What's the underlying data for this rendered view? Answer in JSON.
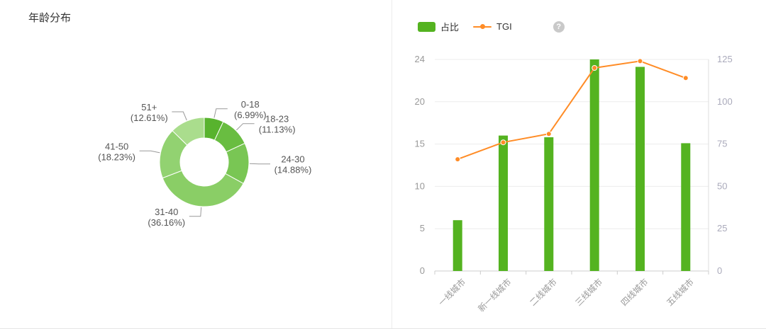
{
  "left_panel": {
    "title": "年龄分布"
  },
  "right_panel": {
    "help_icon": "?"
  },
  "chart_data": [
    {
      "type": "pie",
      "name": "年龄分布",
      "donut": true,
      "start_angle_deg": -90,
      "clockwise": true,
      "labels": [
        "0-18",
        "18-23",
        "24-30",
        "31-40",
        "41-50",
        "51+"
      ],
      "values": [
        6.99,
        11.13,
        14.88,
        36.16,
        18.23,
        12.61
      ],
      "unit": "%",
      "colors": [
        "#58b32e",
        "#69bd41",
        "#79c654",
        "#8ace66",
        "#92d271",
        "#aadd8d"
      ],
      "label_position": "outside"
    },
    {
      "type": "bar",
      "subtype": "bar-line-combo",
      "categories": [
        "一线城市",
        "新一线城市",
        "二线城市",
        "三线城市",
        "四线城市",
        "五线城市"
      ],
      "series": [
        {
          "name": "占比",
          "type": "bar",
          "axis": "left",
          "color": "#54b320",
          "values": [
            6,
            16,
            15.8,
            24,
            23.3,
            15.1
          ]
        },
        {
          "name": "TGI",
          "type": "line",
          "axis": "right",
          "color": "#ff8c26",
          "values": [
            66,
            76,
            81,
            120,
            124,
            114
          ]
        }
      ],
      "left_axis": {
        "ticks": [
          0,
          5,
          10,
          15,
          20,
          24
        ],
        "max": 24
      },
      "right_axis": {
        "ticks": [
          0,
          25,
          50,
          75,
          100,
          125
        ],
        "max": 125
      },
      "grid": true,
      "legend_position": "top",
      "x_label_rotate_deg": 45
    }
  ]
}
